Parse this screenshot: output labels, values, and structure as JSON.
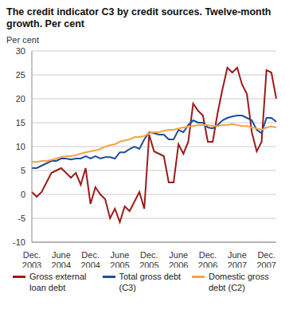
{
  "chart_data": {
    "type": "line",
    "title": "The credit indicator C3 by credit sources. Twelve-month growth. Per cent",
    "y_label": "Per cent",
    "categories": [
      "Dec. 2003",
      null,
      null,
      null,
      null,
      null,
      "June 2004",
      null,
      null,
      null,
      null,
      null,
      "Dec. 2004",
      null,
      null,
      null,
      null,
      null,
      "June 2005",
      null,
      null,
      null,
      null,
      null,
      "Dec. 2005",
      null,
      null,
      null,
      null,
      null,
      "June 2006",
      null,
      null,
      null,
      null,
      null,
      "Dec. 2006",
      null,
      null,
      null,
      null,
      null,
      "June 2007",
      null,
      null,
      null,
      null,
      null,
      "Dec. 2007",
      null,
      null
    ],
    "series": [
      {
        "name": "Gross external loan debt",
        "color": "#9b1b1b",
        "values": [
          0.5,
          -0.5,
          0.5,
          2.5,
          4.5,
          5,
          5.5,
          4.5,
          3.5,
          4.5,
          2,
          5.5,
          -2,
          1.5,
          0,
          -1,
          -5,
          -3,
          -5.8,
          -2.5,
          -3.5,
          -1.5,
          0.5,
          -3,
          12.5,
          9,
          8.5,
          8,
          2.5,
          2.5,
          10.5,
          8.5,
          11,
          19,
          17.5,
          16.5,
          11,
          11,
          17,
          22,
          26.5,
          25.5,
          26.5,
          23,
          21,
          13,
          9,
          11,
          26,
          25.5,
          20
        ]
      },
      {
        "name": "Total gross debt (C3)",
        "color": "#1f4e9c",
        "values": [
          5.5,
          5.5,
          6,
          6.5,
          7,
          7,
          7.5,
          7.5,
          7.3,
          7.5,
          7.5,
          8,
          7.5,
          8,
          7.5,
          7.8,
          7.8,
          7.5,
          8.8,
          8.8,
          9.5,
          10,
          9.5,
          11.5,
          13,
          12.8,
          12.5,
          12.5,
          11.5,
          11.5,
          13.5,
          13,
          14.5,
          15.5,
          15,
          15,
          14,
          13.8,
          14.5,
          15.5,
          16,
          16.3,
          16.5,
          16.5,
          16,
          15.5,
          13.5,
          12.8,
          16,
          16,
          15.2
        ]
      },
      {
        "name": "Domestic gross debt (C2)",
        "color": "#f5a442",
        "values": [
          6.8,
          6.8,
          7,
          7,
          7.2,
          7.5,
          7.8,
          8,
          8,
          8.2,
          8.5,
          8.8,
          9,
          9.2,
          9.5,
          10,
          10.3,
          10.5,
          11,
          11.3,
          11.5,
          12,
          12,
          12.2,
          12.8,
          13,
          13,
          13.3,
          13.5,
          13.5,
          13.8,
          14,
          14.2,
          14.3,
          14.5,
          14.5,
          14.5,
          14.3,
          14.3,
          14.5,
          14.5,
          14.7,
          14.5,
          14.3,
          14.3,
          14,
          13.8,
          13.5,
          14,
          14.2,
          14
        ]
      }
    ],
    "ylim": [
      -10,
      30
    ],
    "yticks": [
      -10,
      -5,
      0,
      5,
      10,
      15,
      20,
      25,
      30
    ],
    "grid": true,
    "legend": "bottom"
  }
}
